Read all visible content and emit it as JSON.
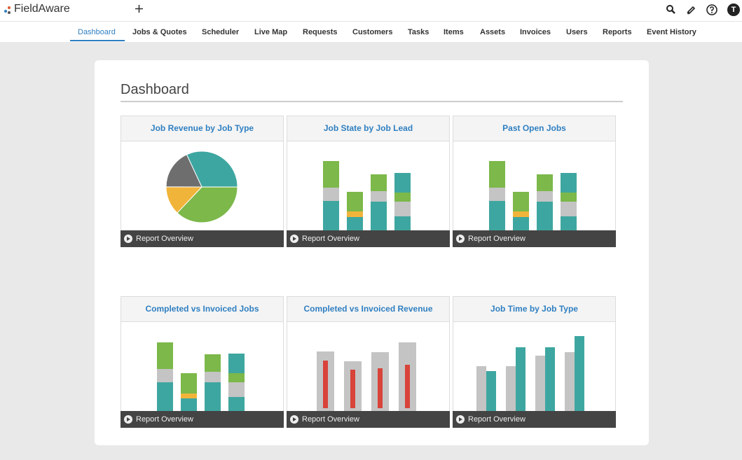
{
  "header": {
    "logo": "FieldAware",
    "avatar": "T"
  },
  "nav": {
    "items": [
      "Dashboard",
      "Jobs & Quotes",
      "Scheduler",
      "Live Map",
      "Requests",
      "Customers",
      "Tasks",
      "Items",
      "Assets",
      "Invoices",
      "Users",
      "Reports",
      "Event History"
    ],
    "active": 0
  },
  "page": {
    "title": "Dashboard"
  },
  "widgets": [
    {
      "title": "Job Revenue by Job Type",
      "footer": "Report Overview",
      "chart_data": {
        "type": "pie",
        "values": [
          32,
          37,
          13,
          18
        ],
        "colors": [
          "#3ea6a0",
          "#7cb84a",
          "#f1b43a",
          "#6e6e6e"
        ]
      }
    },
    {
      "title": "Job State by Job Lead",
      "footer": "Report Overview",
      "chart_data": {
        "type": "bar",
        "stacked": true,
        "series": [
          {
            "color": "#3ea6a0",
            "values": [
              42,
              19,
              41,
              20
            ]
          },
          {
            "color": "#f1b43a",
            "values": [
              0,
              8,
              0,
              0
            ]
          },
          {
            "color": "#c4c4c4",
            "values": [
              19,
              0,
              15,
              21
            ]
          },
          {
            "color": "#7cb84a",
            "values": [
              38,
              28,
              24,
              13
            ]
          },
          {
            "color": "#3ea6a0",
            "values": [
              0,
              0,
              0,
              28
            ]
          }
        ]
      }
    },
    {
      "title": "Past Open Jobs",
      "footer": "Report Overview",
      "chart_data": {
        "type": "bar",
        "stacked": true,
        "series": [
          {
            "color": "#3ea6a0",
            "values": [
              42,
              19,
              41,
              20
            ]
          },
          {
            "color": "#f1b43a",
            "values": [
              0,
              8,
              0,
              0
            ]
          },
          {
            "color": "#c4c4c4",
            "values": [
              19,
              0,
              15,
              21
            ]
          },
          {
            "color": "#7cb84a",
            "values": [
              38,
              28,
              24,
              13
            ]
          },
          {
            "color": "#3ea6a0",
            "values": [
              0,
              0,
              0,
              28
            ]
          }
        ]
      }
    },
    {
      "title": "Completed vs Invoiced Jobs",
      "footer": "Report Overview",
      "chart_data": {
        "type": "bar",
        "stacked": true,
        "series": [
          {
            "color": "#3ea6a0",
            "values": [
              41,
              18,
              41,
              20
            ]
          },
          {
            "color": "#f1b43a",
            "values": [
              0,
              7,
              0,
              0
            ]
          },
          {
            "color": "#c4c4c4",
            "values": [
              19,
              0,
              15,
              21
            ]
          },
          {
            "color": "#7cb84a",
            "values": [
              38,
              29,
              25,
              13
            ]
          },
          {
            "color": "#3ea6a0",
            "values": [
              0,
              0,
              0,
              28
            ]
          }
        ]
      }
    },
    {
      "title": "Completed vs Invoiced Revenue",
      "footer": "Report Overview",
      "chart_data": {
        "type": "bar",
        "overlay": true,
        "series": [
          {
            "color": "#c4c4c4",
            "values": [
              85,
              71,
              84,
              98
            ]
          },
          {
            "color": "#d8433a",
            "values": [
              68,
              55,
              57,
              62
            ]
          }
        ]
      }
    },
    {
      "title": "Job Time by Job Type",
      "footer": "Report Overview",
      "chart_data": {
        "type": "bar",
        "series": [
          {
            "color": "#c4c4c4",
            "values": [
              64,
              64,
              79,
              84
            ]
          },
          {
            "color": "#3ea6a0",
            "values": [
              57,
              91,
              91,
              107
            ]
          }
        ]
      }
    }
  ]
}
